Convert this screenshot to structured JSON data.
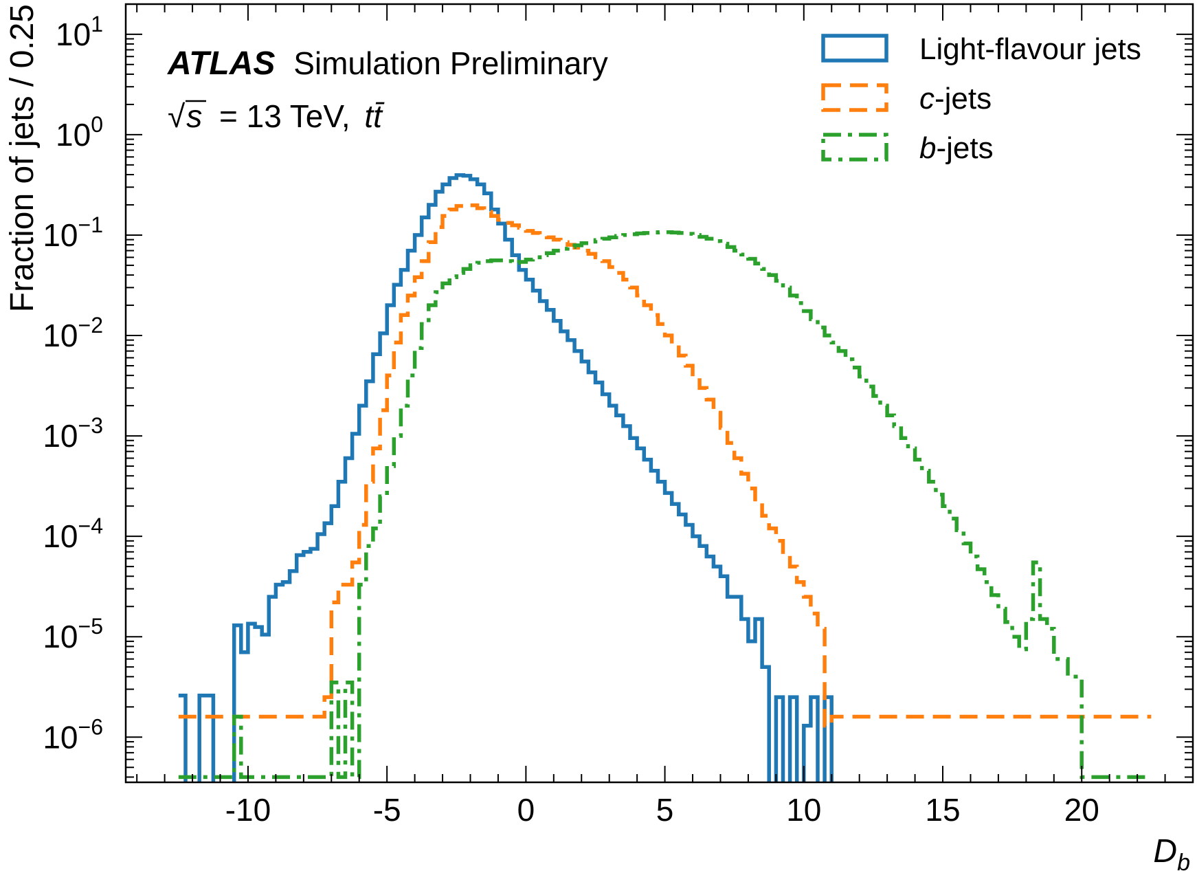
{
  "chart_data": {
    "type": "step-histogram",
    "experiment": "ATLAS",
    "label_status": "Simulation Preliminary",
    "energy_label": "= 13 TeV,",
    "sqrt_s_symbol": "√",
    "s_symbol": "s",
    "process_label": "tt̄",
    "xlabel_main": "D",
    "xlabel_sub": "b",
    "ylabel": "Fraction of jets / 0.25",
    "xlim": [
      -14.4,
      24.0
    ],
    "ylim_log10": [
      -6.45,
      1.3
    ],
    "yscale": "log",
    "x_ticks": [
      {
        "value": -10,
        "label": "-10"
      },
      {
        "value": -5,
        "label": "-5"
      },
      {
        "value": 0,
        "label": "0"
      },
      {
        "value": 5,
        "label": "5"
      },
      {
        "value": 10,
        "label": "10"
      },
      {
        "value": 15,
        "label": "15"
      },
      {
        "value": 20,
        "label": "20"
      }
    ],
    "y_ticks": [
      {
        "exp": 1,
        "base": "10",
        "sup": "1"
      },
      {
        "exp": 0,
        "base": "10",
        "sup": "0"
      },
      {
        "exp": -1,
        "base": "10",
        "sup": "−1"
      },
      {
        "exp": -2,
        "base": "10",
        "sup": "−2"
      },
      {
        "exp": -3,
        "base": "10",
        "sup": "−3"
      },
      {
        "exp": -4,
        "base": "10",
        "sup": "−4"
      },
      {
        "exp": -5,
        "base": "10",
        "sup": "−5"
      },
      {
        "exp": -6,
        "base": "10",
        "sup": "−6"
      }
    ],
    "legend_position": "top-right",
    "series": [
      {
        "name": "Light-flavour jets",
        "color": "#1f77b4",
        "linestyle": "solid",
        "points": [
          [
            -12.5,
            2.6e-06
          ],
          [
            -12.25,
            3e-07
          ],
          [
            -12.0,
            3e-07
          ],
          [
            -11.75,
            2.6e-06
          ],
          [
            -11.25,
            3e-07
          ],
          [
            -10.5,
            1.3e-05
          ],
          [
            -10.25,
            7e-06
          ],
          [
            -10.0,
            1.35e-05
          ],
          [
            -9.75,
            1.25e-05
          ],
          [
            -9.5,
            1.05e-05
          ],
          [
            -9.25,
            2.5e-05
          ],
          [
            -9.0,
            3.3e-05
          ],
          [
            -8.75,
            3.5e-05
          ],
          [
            -8.5,
            4.5e-05
          ],
          [
            -8.25,
            6.5e-05
          ],
          [
            -8.0,
            7e-05
          ],
          [
            -7.75,
            7.5e-05
          ],
          [
            -7.5,
            0.000105
          ],
          [
            -7.25,
            0.000135
          ],
          [
            -7.0,
            0.0002
          ],
          [
            -6.75,
            0.00035
          ],
          [
            -6.5,
            0.0006
          ],
          [
            -6.25,
            0.00105
          ],
          [
            -6.0,
            0.002
          ],
          [
            -5.75,
            0.0035
          ],
          [
            -5.5,
            0.0065
          ],
          [
            -5.25,
            0.0105
          ],
          [
            -5.0,
            0.02
          ],
          [
            -4.75,
            0.032
          ],
          [
            -4.5,
            0.045
          ],
          [
            -4.25,
            0.07
          ],
          [
            -4.0,
            0.1
          ],
          [
            -3.75,
            0.15
          ],
          [
            -3.5,
            0.2
          ],
          [
            -3.25,
            0.27
          ],
          [
            -3.0,
            0.32
          ],
          [
            -2.75,
            0.37
          ],
          [
            -2.5,
            0.395
          ],
          [
            -2.25,
            0.39
          ],
          [
            -2.0,
            0.36
          ],
          [
            -1.75,
            0.32
          ],
          [
            -1.5,
            0.26
          ],
          [
            -1.25,
            0.18
          ],
          [
            -1.0,
            0.13
          ],
          [
            -0.75,
            0.09
          ],
          [
            -0.5,
            0.063
          ],
          [
            -0.25,
            0.045
          ],
          [
            0.0,
            0.036
          ],
          [
            0.25,
            0.028
          ],
          [
            0.5,
            0.022
          ],
          [
            0.75,
            0.018
          ],
          [
            1.0,
            0.014
          ],
          [
            1.25,
            0.011
          ],
          [
            1.5,
            0.009
          ],
          [
            1.75,
            0.007
          ],
          [
            2.0,
            0.0055
          ],
          [
            2.25,
            0.0043
          ],
          [
            2.5,
            0.0034
          ],
          [
            2.75,
            0.0026
          ],
          [
            3.0,
            0.002
          ],
          [
            3.25,
            0.0016
          ],
          [
            3.5,
            0.00125
          ],
          [
            3.75,
            0.00095
          ],
          [
            4.0,
            0.00075
          ],
          [
            4.25,
            0.00058
          ],
          [
            4.5,
            0.00045
          ],
          [
            4.75,
            0.00035
          ],
          [
            5.0,
            0.00027
          ],
          [
            5.25,
            0.00021
          ],
          [
            5.5,
            0.000165
          ],
          [
            5.75,
            0.00013
          ],
          [
            6.0,
            0.0001
          ],
          [
            6.25,
            8e-05
          ],
          [
            6.5,
            6.3e-05
          ],
          [
            6.75,
            5e-05
          ],
          [
            7.0,
            4e-05
          ],
          [
            7.25,
            2.5e-05
          ],
          [
            7.5,
            2.5e-05
          ],
          [
            7.75,
            1.5e-05
          ],
          [
            8.0,
            9e-06
          ],
          [
            8.25,
            1.5e-05
          ],
          [
            8.5,
            5e-06
          ],
          [
            8.75,
            3e-07
          ],
          [
            9.0,
            2.5e-06
          ],
          [
            9.25,
            3e-07
          ],
          [
            9.5,
            2.5e-06
          ],
          [
            9.75,
            3e-07
          ],
          [
            10.0,
            1.3e-06
          ],
          [
            10.25,
            2.5e-06
          ],
          [
            10.5,
            3e-07
          ],
          [
            10.75,
            2.5e-06
          ],
          [
            11.0,
            2.5e-07
          ],
          [
            22.5,
            2.5e-07
          ]
        ]
      },
      {
        "name": "c-jets",
        "color": "#ff7f0e",
        "linestyle": "dashed",
        "points": [
          [
            -12.5,
            1.6e-06
          ],
          [
            -7.25,
            2.5e-06
          ],
          [
            -7.0,
            2.2e-05
          ],
          [
            -6.75,
            3.3e-05
          ],
          [
            -6.25,
            5.5e-05
          ],
          [
            -6.0,
            0.00013
          ],
          [
            -5.75,
            0.00035
          ],
          [
            -5.5,
            0.00075
          ],
          [
            -5.25,
            0.0018
          ],
          [
            -5.0,
            0.004
          ],
          [
            -4.75,
            0.0085
          ],
          [
            -4.5,
            0.016
          ],
          [
            -4.25,
            0.025
          ],
          [
            -4.0,
            0.038
          ],
          [
            -3.75,
            0.055
          ],
          [
            -3.5,
            0.085
          ],
          [
            -3.25,
            0.12
          ],
          [
            -3.0,
            0.155
          ],
          [
            -2.75,
            0.18
          ],
          [
            -2.5,
            0.195
          ],
          [
            -2.25,
            0.2
          ],
          [
            -2.0,
            0.198
          ],
          [
            -1.75,
            0.185
          ],
          [
            -1.5,
            0.17
          ],
          [
            -1.25,
            0.155
          ],
          [
            -1.0,
            0.142
          ],
          [
            -0.75,
            0.132
          ],
          [
            -0.5,
            0.125
          ],
          [
            -0.25,
            0.118
          ],
          [
            0.0,
            0.11
          ],
          [
            0.25,
            0.105
          ],
          [
            0.5,
            0.1
          ],
          [
            0.75,
            0.095
          ],
          [
            1.0,
            0.09
          ],
          [
            1.25,
            0.085
          ],
          [
            1.5,
            0.08
          ],
          [
            1.75,
            0.075
          ],
          [
            2.0,
            0.07
          ],
          [
            2.25,
            0.065
          ],
          [
            2.5,
            0.06
          ],
          [
            2.75,
            0.055
          ],
          [
            3.0,
            0.048
          ],
          [
            3.25,
            0.042
          ],
          [
            3.5,
            0.036
          ],
          [
            3.75,
            0.03
          ],
          [
            4.0,
            0.025
          ],
          [
            4.25,
            0.02
          ],
          [
            4.5,
            0.016
          ],
          [
            4.75,
            0.013
          ],
          [
            5.0,
            0.01
          ],
          [
            5.25,
            0.008
          ],
          [
            5.5,
            0.0063
          ],
          [
            5.75,
            0.005
          ],
          [
            6.0,
            0.0039
          ],
          [
            6.25,
            0.003
          ],
          [
            6.5,
            0.0023
          ],
          [
            6.75,
            0.0017
          ],
          [
            7.0,
            0.0012
          ],
          [
            7.25,
            0.00085
          ],
          [
            7.5,
            0.0006
          ],
          [
            7.75,
            0.00042
          ],
          [
            8.0,
            0.0003
          ],
          [
            8.25,
            0.00022
          ],
          [
            8.5,
            0.00016
          ],
          [
            8.75,
            0.00012
          ],
          [
            9.0,
            9e-05
          ],
          [
            9.25,
            6.5e-05
          ],
          [
            9.5,
            5e-05
          ],
          [
            9.75,
            3.5e-05
          ],
          [
            10.0,
            2.5e-05
          ],
          [
            10.25,
            1.7e-05
          ],
          [
            10.5,
            1.2e-05
          ],
          [
            10.75,
            1.3e-06
          ],
          [
            11.0,
            1.6e-06
          ],
          [
            22.5,
            1.6e-06
          ]
        ]
      },
      {
        "name": "b-jets",
        "color": "#2ca02c",
        "linestyle": "dashdot",
        "points": [
          [
            -12.5,
            4e-07
          ],
          [
            -10.5,
            1.6e-06
          ],
          [
            -10.25,
            4e-07
          ],
          [
            -7.0,
            3.5e-06
          ],
          [
            -6.75,
            4e-07
          ],
          [
            -6.5,
            3.5e-06
          ],
          [
            -6.25,
            4e-07
          ],
          [
            -6.0,
            3.3e-05
          ],
          [
            -5.75,
            8e-05
          ],
          [
            -5.5,
            0.00012
          ],
          [
            -5.25,
            0.00025
          ],
          [
            -5.0,
            0.0005
          ],
          [
            -4.75,
            0.001
          ],
          [
            -4.5,
            0.002
          ],
          [
            -4.25,
            0.004
          ],
          [
            -4.0,
            0.0075
          ],
          [
            -3.75,
            0.013
          ],
          [
            -3.5,
            0.02
          ],
          [
            -3.25,
            0.027
          ],
          [
            -3.0,
            0.033
          ],
          [
            -2.75,
            0.038
          ],
          [
            -2.5,
            0.042
          ],
          [
            -2.25,
            0.046
          ],
          [
            -2.0,
            0.05
          ],
          [
            -1.75,
            0.053
          ],
          [
            -1.5,
            0.055
          ],
          [
            -1.25,
            0.056
          ],
          [
            -1.0,
            0.056
          ],
          [
            -0.75,
            0.055
          ],
          [
            -0.5,
            0.053
          ],
          [
            -0.25,
            0.054
          ],
          [
            0.0,
            0.057
          ],
          [
            0.25,
            0.06
          ],
          [
            0.5,
            0.063
          ],
          [
            0.75,
            0.066
          ],
          [
            1.0,
            0.07
          ],
          [
            1.25,
            0.073
          ],
          [
            1.5,
            0.076
          ],
          [
            1.75,
            0.079
          ],
          [
            2.0,
            0.083
          ],
          [
            2.25,
            0.086
          ],
          [
            2.5,
            0.089
          ],
          [
            2.75,
            0.092
          ],
          [
            3.0,
            0.095
          ],
          [
            3.25,
            0.098
          ],
          [
            3.5,
            0.1
          ],
          [
            3.75,
            0.102
          ],
          [
            4.0,
            0.104
          ],
          [
            4.25,
            0.105
          ],
          [
            4.5,
            0.106
          ],
          [
            4.75,
            0.107
          ],
          [
            5.0,
            0.107
          ],
          [
            5.25,
            0.106
          ],
          [
            5.5,
            0.105
          ],
          [
            5.75,
            0.103
          ],
          [
            6.0,
            0.1
          ],
          [
            6.25,
            0.096
          ],
          [
            6.5,
            0.092
          ],
          [
            6.75,
            0.087
          ],
          [
            7.0,
            0.082
          ],
          [
            7.25,
            0.076
          ],
          [
            7.5,
            0.07
          ],
          [
            7.75,
            0.064
          ],
          [
            8.0,
            0.058
          ],
          [
            8.25,
            0.052
          ],
          [
            8.5,
            0.046
          ],
          [
            8.75,
            0.04
          ],
          [
            9.0,
            0.035
          ],
          [
            9.25,
            0.03
          ],
          [
            9.5,
            0.025
          ],
          [
            9.75,
            0.021
          ],
          [
            10.0,
            0.0175
          ],
          [
            10.25,
            0.0145
          ],
          [
            10.5,
            0.012
          ],
          [
            10.75,
            0.01
          ],
          [
            11.0,
            0.0085
          ],
          [
            11.25,
            0.007
          ],
          [
            11.5,
            0.0058
          ],
          [
            11.75,
            0.0048
          ],
          [
            12.0,
            0.0039
          ],
          [
            12.25,
            0.0031
          ],
          [
            12.5,
            0.0025
          ],
          [
            12.75,
            0.002
          ],
          [
            13.0,
            0.0016
          ],
          [
            13.25,
            0.00125
          ],
          [
            13.5,
            0.00095
          ],
          [
            13.75,
            0.00075
          ],
          [
            14.0,
            0.00058
          ],
          [
            14.25,
            0.00045
          ],
          [
            14.5,
            0.00035
          ],
          [
            14.75,
            0.00026
          ],
          [
            15.0,
            0.0002
          ],
          [
            15.25,
            0.00015
          ],
          [
            15.5,
            0.000115
          ],
          [
            15.75,
            8.5e-05
          ],
          [
            16.0,
            6.3e-05
          ],
          [
            16.25,
            4.7e-05
          ],
          [
            16.5,
            3.5e-05
          ],
          [
            16.75,
            2.6e-05
          ],
          [
            17.0,
            1.9e-05
          ],
          [
            17.25,
            1.4e-05
          ],
          [
            17.5,
            1e-05
          ],
          [
            17.75,
            7.5e-06
          ],
          [
            18.0,
            1.5e-05
          ],
          [
            18.25,
            5.5e-05
          ],
          [
            18.5,
            1.5e-05
          ],
          [
            18.75,
            1.2e-05
          ],
          [
            19.0,
            6e-06
          ],
          [
            19.5,
            4e-06
          ],
          [
            20.0,
            4e-07
          ],
          [
            22.5,
            4e-07
          ]
        ]
      }
    ]
  }
}
